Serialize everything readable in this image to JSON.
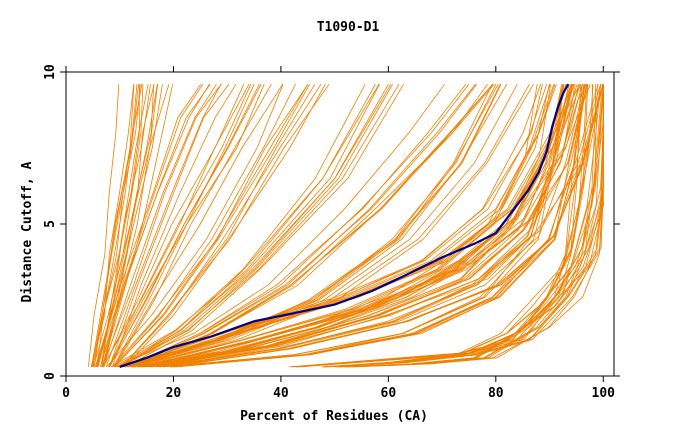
{
  "chart_data": {
    "type": "line",
    "title": "T1090-D1",
    "xlabel": "Percent of Residues (CA)",
    "ylabel": "Distance Cutoff, A",
    "xlim": [
      0,
      102
    ],
    "ylim": [
      0,
      10
    ],
    "x_ticks": [
      0,
      20,
      40,
      60,
      80,
      100
    ],
    "y_ticks": [
      0,
      5,
      10
    ],
    "grid": false,
    "colors": {
      "background_curves": "#f08000",
      "highlight": "#00008b",
      "axes": "#000000"
    },
    "highlight_series": {
      "points": [
        [
          10,
          0.3
        ],
        [
          15,
          0.6
        ],
        [
          20,
          0.95
        ],
        [
          27,
          1.3
        ],
        [
          35,
          1.8
        ],
        [
          42,
          2.05
        ],
        [
          50,
          2.35
        ],
        [
          57,
          2.8
        ],
        [
          63,
          3.3
        ],
        [
          70,
          3.9
        ],
        [
          76,
          4.35
        ],
        [
          80,
          4.7
        ],
        [
          83,
          5.4
        ],
        [
          86,
          6.1
        ],
        [
          88,
          6.7
        ],
        [
          89.5,
          7.4
        ],
        [
          90.5,
          8.2
        ],
        [
          91.5,
          8.8
        ],
        [
          92.5,
          9.3
        ],
        [
          93.5,
          9.6
        ]
      ]
    },
    "background_series": [
      {
        "shape": [
          [
            5,
            0.3
          ],
          [
            7,
            2
          ],
          [
            9,
            4
          ],
          [
            11,
            6
          ],
          [
            12.5,
            8
          ],
          [
            13.5,
            9.6
          ]
        ]
      },
      {
        "shape": [
          [
            6,
            0.3
          ],
          [
            9,
            2.5
          ],
          [
            12,
            5
          ],
          [
            15,
            7.5
          ],
          [
            17,
            9.6
          ]
        ]
      },
      {
        "shape": [
          [
            7,
            0.3
          ],
          [
            12,
            3
          ],
          [
            18,
            6
          ],
          [
            24,
            8.5
          ],
          [
            28,
            9.6
          ]
        ]
      },
      {
        "shape": [
          [
            8,
            0.3
          ],
          [
            15,
            2.5
          ],
          [
            22,
            5
          ],
          [
            30,
            7.5
          ],
          [
            36,
            9.6
          ]
        ]
      },
      {
        "shape": [
          [
            9,
            0.3
          ],
          [
            18,
            2
          ],
          [
            28,
            4.5
          ],
          [
            38,
            7.5
          ],
          [
            45,
            9.6
          ]
        ]
      },
      {
        "shape": [
          [
            10,
            0.3
          ],
          [
            22,
            1.5
          ],
          [
            35,
            3.5
          ],
          [
            50,
            6.5
          ],
          [
            60,
            9.6
          ]
        ]
      },
      {
        "shape": [
          [
            11,
            0.3
          ],
          [
            25,
            1.4
          ],
          [
            40,
            3
          ],
          [
            55,
            5.5
          ],
          [
            68,
            8
          ],
          [
            75,
            9.6
          ]
        ]
      },
      {
        "shape": [
          [
            12,
            0.3
          ],
          [
            30,
            1.2
          ],
          [
            48,
            2.5
          ],
          [
            64,
            4.5
          ],
          [
            76,
            7
          ],
          [
            84,
            9.6
          ]
        ]
      },
      {
        "shape": [
          [
            12,
            0.3
          ],
          [
            32,
            1.5
          ],
          [
            52,
            2.6
          ],
          [
            68,
            3.8
          ],
          [
            80,
            5.5
          ],
          [
            88,
            8
          ],
          [
            91,
            9.6
          ]
        ]
      },
      {
        "shape": [
          [
            14,
            0.3
          ],
          [
            35,
            1.2
          ],
          [
            55,
            2.2
          ],
          [
            72,
            3.5
          ],
          [
            82,
            5
          ],
          [
            90,
            7.5
          ],
          [
            94,
            9.6
          ]
        ]
      },
      {
        "shape": [
          [
            16,
            0.3
          ],
          [
            38,
            1
          ],
          [
            58,
            2
          ],
          [
            75,
            3.2
          ],
          [
            85,
            4.8
          ],
          [
            92,
            7
          ],
          [
            95.5,
            9.6
          ]
        ]
      },
      {
        "shape": [
          [
            18,
            0.3
          ],
          [
            40,
            0.9
          ],
          [
            62,
            1.8
          ],
          [
            78,
            3
          ],
          [
            88,
            4.6
          ],
          [
            93,
            7
          ],
          [
            96.5,
            9.6
          ]
        ]
      },
      {
        "shape": [
          [
            14,
            0.3
          ],
          [
            30,
            0.8
          ],
          [
            47,
            1.6
          ],
          [
            62,
            2.6
          ],
          [
            74,
            3.8
          ],
          [
            84,
            5.2
          ],
          [
            89,
            7.2
          ],
          [
            92.5,
            9.6
          ]
        ]
      },
      {
        "shape": [
          [
            20,
            0.3
          ],
          [
            45,
            0.7
          ],
          [
            65,
            1.4
          ],
          [
            80,
            2.6
          ],
          [
            90,
            4.5
          ],
          [
            94,
            7
          ],
          [
            97,
            9.6
          ]
        ]
      },
      {
        "shape": [
          [
            42,
            0.3
          ],
          [
            60,
            0.55
          ],
          [
            74,
            0.75
          ],
          [
            82,
            1.4
          ],
          [
            88,
            2.3
          ],
          [
            94,
            3.6
          ],
          [
            97,
            5.6
          ],
          [
            98.5,
            7.8
          ],
          [
            99.5,
            9.6
          ]
        ]
      },
      {
        "shape": [
          [
            48,
            0.3
          ],
          [
            62,
            0.45
          ],
          [
            74,
            0.7
          ],
          [
            84,
            1.2
          ],
          [
            91,
            2.6
          ],
          [
            96,
            4.2
          ],
          [
            98.5,
            6.2
          ],
          [
            100,
            8.4
          ],
          [
            100,
            9.6
          ]
        ]
      },
      {
        "shape": [
          [
            52,
            0.3
          ],
          [
            66,
            0.4
          ],
          [
            78,
            0.6
          ],
          [
            88,
            1.6
          ],
          [
            93,
            2.6
          ],
          [
            96,
            4
          ],
          [
            98.5,
            6.4
          ],
          [
            100,
            9.6
          ]
        ]
      }
    ]
  }
}
